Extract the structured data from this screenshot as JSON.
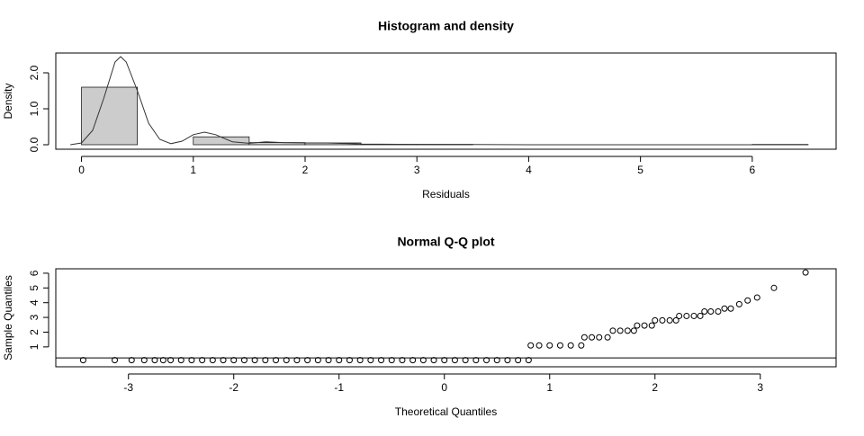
{
  "chart_data": [
    {
      "type": "histogram",
      "title": "Histogram and density",
      "x_label": "Residuals",
      "y_label": "Density",
      "bins": [
        0,
        0.5,
        1,
        1.5,
        2,
        2.5,
        3,
        3.5,
        4,
        4.5,
        5,
        5.5,
        6,
        6.5
      ],
      "values": [
        1.6,
        0,
        0.22,
        0.06,
        0.05,
        0.01,
        0.01,
        0,
        0,
        0,
        0,
        0,
        0.01
      ],
      "color": "#cccccc",
      "density": {
        "x": [
          -0.1,
          0,
          0.1,
          0.2,
          0.3,
          0.35,
          0.4,
          0.5,
          0.6,
          0.7,
          0.8,
          0.9,
          1.0,
          1.1,
          1.2,
          1.35,
          1.5,
          1.65,
          1.8,
          2.0,
          2.2,
          2.5,
          3,
          3.5,
          4,
          6.5
        ],
        "values": [
          0,
          0.05,
          0.4,
          1.3,
          2.3,
          2.45,
          2.3,
          1.5,
          0.6,
          0.15,
          0.03,
          0.1,
          0.28,
          0.35,
          0.28,
          0.08,
          0.04,
          0.08,
          0.06,
          0.05,
          0.05,
          0.02,
          0.01,
          0.005,
          0,
          0
        ]
      },
      "xlim": [
        -0.23,
        6.75
      ],
      "ylim": [
        -0.125,
        2.55
      ],
      "xticks": [
        0,
        1,
        2,
        3,
        4,
        5,
        6
      ],
      "yticks": [
        {
          "value": 0,
          "label": "0.0"
        },
        {
          "value": 1,
          "label": "1.0"
        },
        {
          "value": 2,
          "label": "2.0"
        }
      ]
    },
    {
      "type": "scatter",
      "title": "Normal Q-Q plot",
      "x_label": "Theoretical Quantiles",
      "y_label": "Sample Quantiles",
      "x": [
        -3.43,
        -3.13,
        -2.97,
        -2.85,
        -2.75,
        -2.67,
        -2.6,
        -2.5,
        -2.4,
        -2.3,
        -2.2,
        -2.1,
        -2.0,
        -1.9,
        -1.8,
        -1.7,
        -1.6,
        -1.5,
        -1.4,
        -1.3,
        -1.2,
        -1.1,
        -1.0,
        -0.9,
        -0.8,
        -0.7,
        -0.6,
        -0.5,
        -0.4,
        -0.3,
        -0.2,
        -0.1,
        0,
        0.1,
        0.2,
        0.3,
        0.4,
        0.5,
        0.6,
        0.7,
        0.8,
        0.82,
        0.9,
        1.0,
        1.1,
        1.2,
        1.3,
        1.33,
        1.4,
        1.47,
        1.55,
        1.6,
        1.67,
        1.74,
        1.8,
        1.83,
        1.9,
        1.97,
        2.0,
        2.07,
        2.14,
        2.2,
        2.23,
        2.3,
        2.37,
        2.43,
        2.47,
        2.53,
        2.6,
        2.66,
        2.72,
        2.8,
        2.88,
        2.97,
        3.13,
        3.43
      ],
      "values": [
        0.1,
        0.1,
        0.1,
        0.1,
        0.1,
        0.1,
        0.1,
        0.1,
        0.1,
        0.1,
        0.1,
        0.1,
        0.1,
        0.1,
        0.1,
        0.1,
        0.1,
        0.1,
        0.1,
        0.1,
        0.1,
        0.1,
        0.1,
        0.1,
        0.1,
        0.1,
        0.1,
        0.1,
        0.1,
        0.1,
        0.1,
        0.1,
        0.1,
        0.1,
        0.1,
        0.1,
        0.1,
        0.1,
        0.1,
        0.1,
        0.1,
        1.1,
        1.1,
        1.1,
        1.1,
        1.1,
        1.1,
        1.65,
        1.65,
        1.65,
        1.65,
        2.1,
        2.1,
        2.1,
        2.1,
        2.45,
        2.45,
        2.45,
        2.8,
        2.8,
        2.8,
        2.8,
        3.1,
        3.1,
        3.1,
        3.1,
        3.4,
        3.4,
        3.4,
        3.6,
        3.6,
        3.9,
        4.15,
        4.35,
        5.0,
        6.05
      ],
      "reference_line": 0.25,
      "xlim": [
        -3.69,
        3.72
      ],
      "ylim": [
        -0.35,
        6.3
      ],
      "xticks": [
        -3,
        -2,
        -1,
        0,
        1,
        2,
        3
      ],
      "yticks": [
        1,
        2,
        3,
        4,
        5,
        6
      ]
    }
  ]
}
